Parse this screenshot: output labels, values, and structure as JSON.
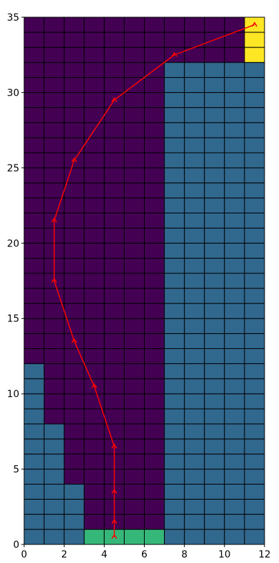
{
  "chart_data": {
    "type": "heatmap",
    "title": "",
    "xlabel": "",
    "ylabel": "",
    "xlim": [
      0,
      12
    ],
    "ylim": [
      0,
      35
    ],
    "xticks": [
      0,
      2,
      4,
      6,
      8,
      10,
      12
    ],
    "yticks": [
      0,
      5,
      10,
      15,
      20,
      25,
      30,
      35
    ],
    "grid_cols": 12,
    "grid_rows": 35,
    "cell_colors": {
      "free": "#440154",
      "wall": "#31688e",
      "start": "#35b779",
      "goal": "#fde725",
      "cell_border": "#000000"
    },
    "wall_regions": [
      {
        "x0": 0,
        "x1": 1,
        "y0": 0,
        "y1": 12
      },
      {
        "x0": 1,
        "x1": 2,
        "y0": 0,
        "y1": 8
      },
      {
        "x0": 2,
        "x1": 3,
        "y0": 0,
        "y1": 4
      },
      {
        "x0": 7,
        "x1": 12,
        "y0": 0,
        "y1": 32
      }
    ],
    "start_region": {
      "x0": 3,
      "x1": 7,
      "y0": 0,
      "y1": 1
    },
    "goal_region": {
      "x0": 11,
      "x1": 12,
      "y0": 32,
      "y1": 35
    },
    "series": [
      {
        "color": "#ff0000",
        "x": [
          4.5,
          4.5,
          4.5,
          4.5,
          3.5,
          2.5,
          1.5,
          1.5,
          2.5,
          4.5,
          7.5,
          11.5
        ],
        "y": [
          0.5,
          1.5,
          3.5,
          6.5,
          10.5,
          13.5,
          17.5,
          21.5,
          25.5,
          29.5,
          32.5,
          34.5
        ]
      }
    ]
  }
}
